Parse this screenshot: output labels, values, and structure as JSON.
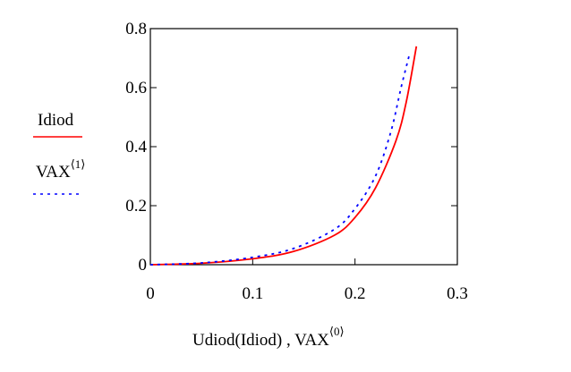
{
  "chart_data": {
    "type": "line",
    "title": "",
    "xlabel": "Udiod(Idiod) , VAX",
    "xlabel_superscript": "⟨0⟩",
    "ylim": [
      0,
      0.8
    ],
    "xlim": [
      0,
      0.3
    ],
    "x_ticks": [
      "0",
      "0.1",
      "0.2",
      "0.3"
    ],
    "y_ticks": [
      "0",
      "0.2",
      "0.4",
      "0.6",
      "0.8"
    ],
    "grid": false,
    "legend_placement": "left",
    "series": [
      {
        "name": "Idiod",
        "color": "#ff0000",
        "style": "solid",
        "points": [
          [
            0,
            0
          ],
          [
            0.05,
            0.005
          ],
          [
            0.1,
            0.02
          ],
          [
            0.14,
            0.045
          ],
          [
            0.18,
            0.1
          ],
          [
            0.2,
            0.16
          ],
          [
            0.22,
            0.26
          ],
          [
            0.24,
            0.42
          ],
          [
            0.25,
            0.55
          ],
          [
            0.26,
            0.74
          ]
        ]
      },
      {
        "name": "VAX",
        "name_superscript": "⟨1⟩",
        "color": "#0000ff",
        "style": "dotted",
        "points": [
          [
            0,
            0
          ],
          [
            0.05,
            0.006
          ],
          [
            0.1,
            0.025
          ],
          [
            0.14,
            0.055
          ],
          [
            0.18,
            0.12
          ],
          [
            0.2,
            0.19
          ],
          [
            0.22,
            0.3
          ],
          [
            0.235,
            0.45
          ],
          [
            0.245,
            0.6
          ],
          [
            0.253,
            0.71
          ]
        ]
      }
    ]
  }
}
